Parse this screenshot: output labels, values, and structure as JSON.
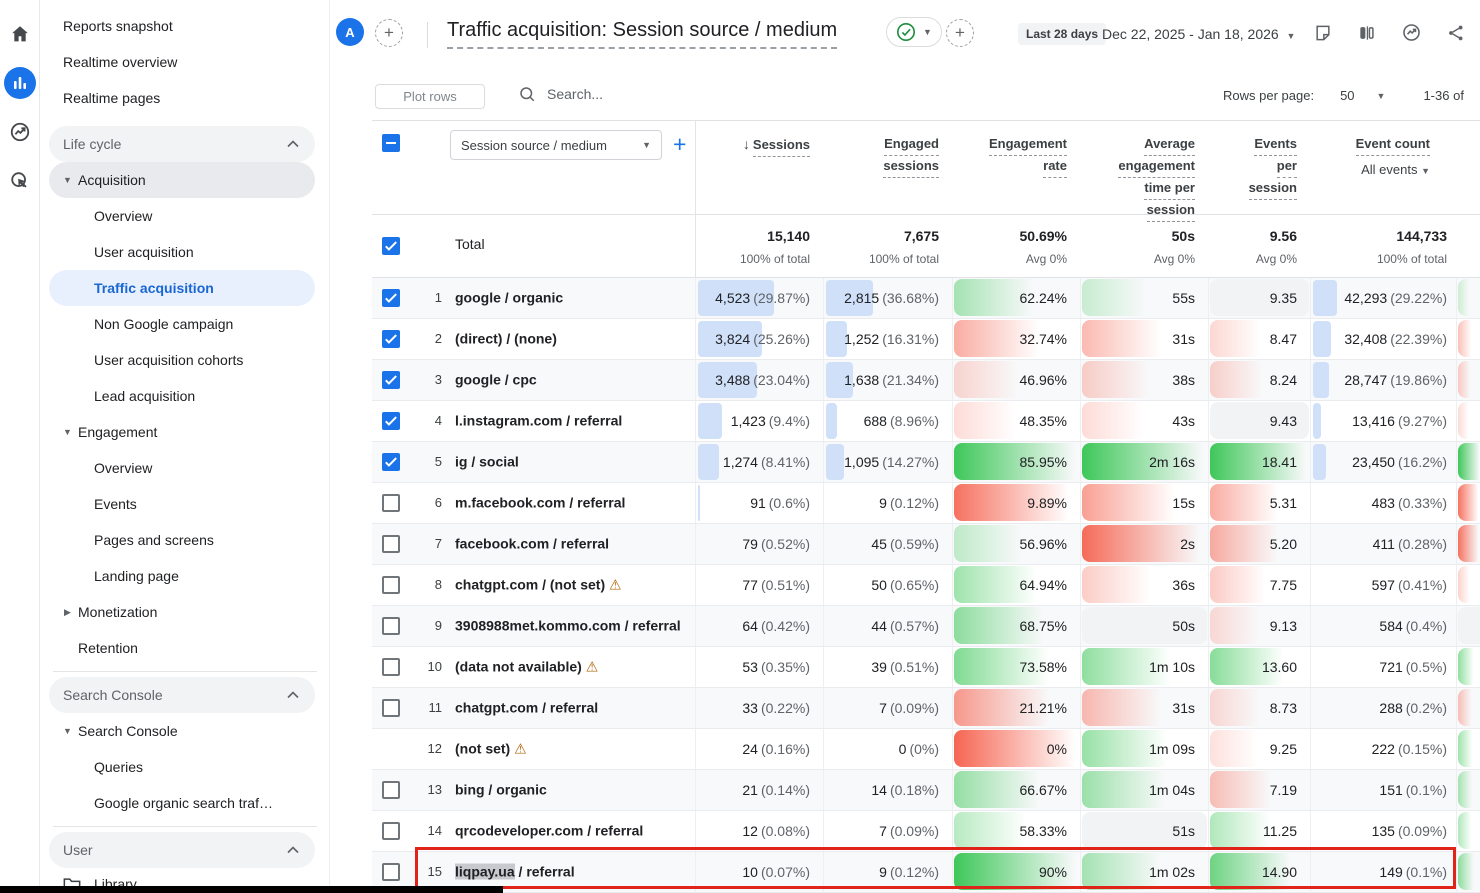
{
  "rail": {
    "items": [
      "home",
      "reports",
      "advertising",
      "explore"
    ]
  },
  "sidebar": {
    "items": [
      {
        "label": "Reports snapshot",
        "type": "top"
      },
      {
        "label": "Realtime overview",
        "type": "top"
      },
      {
        "label": "Realtime pages",
        "type": "top"
      },
      {
        "label": "Life cycle",
        "type": "section"
      },
      {
        "label": "Acquisition",
        "type": "parent",
        "expanded": true,
        "active": true
      },
      {
        "label": "Overview",
        "type": "child"
      },
      {
        "label": "User acquisition",
        "type": "child"
      },
      {
        "label": "Traffic acquisition",
        "type": "child",
        "selected": true
      },
      {
        "label": "Non Google campaign",
        "type": "child"
      },
      {
        "label": "User acquisition cohorts",
        "type": "child"
      },
      {
        "label": "Lead acquisition",
        "type": "child"
      },
      {
        "label": "Engagement",
        "type": "parent",
        "expanded": true
      },
      {
        "label": "Overview",
        "type": "child"
      },
      {
        "label": "Events",
        "type": "child"
      },
      {
        "label": "Pages and screens",
        "type": "child"
      },
      {
        "label": "Landing page",
        "type": "child"
      },
      {
        "label": "Monetization",
        "type": "parent",
        "expanded": false
      },
      {
        "label": "Retention",
        "type": "parent_plain"
      },
      {
        "type": "divider"
      },
      {
        "label": "Search Console",
        "type": "section"
      },
      {
        "label": "Search Console",
        "type": "parent",
        "expanded": true
      },
      {
        "label": "Queries",
        "type": "child"
      },
      {
        "label": "Google organic search traf…",
        "type": "child"
      },
      {
        "type": "divider"
      },
      {
        "label": "User",
        "type": "section"
      },
      {
        "label": "Library",
        "type": "library"
      }
    ]
  },
  "appbar": {
    "avatar_letter": "A",
    "title": "Traffic acquisition: Session source / medium",
    "date_preset": "Last 28 days",
    "date_range": "Dec 22, 2025 - Jan 18, 2026"
  },
  "toolbar": {
    "plot_rows_label": "Plot rows",
    "search_placeholder": "Search...",
    "rows_per_page_label": "Rows per page:",
    "rows_per_page_value": "50",
    "pagination": "1-36 of"
  },
  "table": {
    "dimension_selector": "Session source / medium",
    "columns": [
      {
        "lines": [
          "Sessions"
        ],
        "sorted": true
      },
      {
        "lines": [
          "Engaged",
          "sessions"
        ]
      },
      {
        "lines": [
          "Engagement",
          "rate"
        ]
      },
      {
        "lines": [
          "Average",
          "engagement",
          "time per",
          "session"
        ]
      },
      {
        "lines": [
          "Events",
          "per",
          "session"
        ]
      },
      {
        "lines": [
          "Event count"
        ],
        "sub": "All events"
      }
    ],
    "totals": {
      "label": "Total",
      "cells": [
        [
          "15,140",
          "100% of total"
        ],
        [
          "7,675",
          "100% of total"
        ],
        [
          "50.69%",
          "Avg 0%"
        ],
        [
          "50s",
          "Avg 0%"
        ],
        [
          "9.56",
          "Avg 0%"
        ],
        [
          "144,733",
          "100% of total"
        ]
      ]
    },
    "rows": [
      {
        "n": "1",
        "check": "on",
        "dim": "google / organic",
        "sessions": [
          "4,523",
          "(29.87%)"
        ],
        "engaged": [
          "2,815",
          "(36.68%)"
        ],
        "rate": "62.24%",
        "time": "55s",
        "eps": "9.35",
        "events": [
          "42,293",
          "(29.22%)"
        ],
        "bars": [
          1,
          1,
          1
        ],
        "heat": [
          0.35,
          0.12,
          0,
          0.1
        ]
      },
      {
        "n": "2",
        "check": "on",
        "dim": "(direct) / (none)",
        "sessions": [
          "3,824",
          "(25.26%)"
        ],
        "engaged": [
          "1,252",
          "(16.31%)"
        ],
        "rate": "32.74%",
        "time": "31s",
        "eps": "8.47",
        "events": [
          "32,408",
          "(22.39%)"
        ],
        "bars": [
          0.846,
          0.445,
          0.766
        ],
        "heat": [
          -0.45,
          -0.35,
          -0.12,
          -0.3
        ]
      },
      {
        "n": "3",
        "check": "on",
        "dim": "google / cpc",
        "sessions": [
          "3,488",
          "(23.04%)"
        ],
        "engaged": [
          "1,638",
          "(21.34%)"
        ],
        "rate": "46.96%",
        "time": "38s",
        "eps": "8.24",
        "events": [
          "28,747",
          "(19.86%)"
        ],
        "bars": [
          0.771,
          0.582,
          0.68
        ],
        "heat": [
          -0.12,
          -0.18,
          -0.15,
          -0.2
        ]
      },
      {
        "n": "4",
        "check": "on",
        "dim": "l.instagram.com / referral",
        "sessions": [
          "1,423",
          "(9.4%)"
        ],
        "engaged": [
          "688",
          "(8.96%)"
        ],
        "rate": "48.35%",
        "time": "43s",
        "eps": "9.43",
        "events": [
          "13,416",
          "(9.27%)"
        ],
        "bars": [
          0.315,
          0.244,
          0.317
        ],
        "heat": [
          -0.08,
          -0.08,
          0,
          -0.08
        ]
      },
      {
        "n": "5",
        "check": "on",
        "dim": "ig / social",
        "sessions": [
          "1,274",
          "(8.41%)"
        ],
        "engaged": [
          "1,095",
          "(14.27%)"
        ],
        "rate": "85.95%",
        "time": "2m 16s",
        "eps": "18.41",
        "events": [
          "23,450",
          "(16.2%)"
        ],
        "bars": [
          0.282,
          0.389,
          0.554
        ],
        "heat": [
          1,
          1,
          1,
          1
        ]
      },
      {
        "n": "6",
        "check": "off",
        "dim": "m.facebook.com / referral",
        "sessions": [
          "91",
          "(0.6%)"
        ],
        "engaged": [
          "9",
          "(0.12%)"
        ],
        "rate": "9.89%",
        "time": "15s",
        "eps": "5.31",
        "events": [
          "483",
          "(0.33%)"
        ],
        "bars": [
          0.02,
          0.003,
          0.011
        ],
        "heat": [
          -0.9,
          -0.55,
          -0.45,
          -0.9
        ]
      },
      {
        "n": "7",
        "check": "off",
        "dim": "facebook.com / referral",
        "sessions": [
          "79",
          "(0.52%)"
        ],
        "engaged": [
          "45",
          "(0.59%)"
        ],
        "rate": "56.96%",
        "time": "2s",
        "eps": "5.20",
        "events": [
          "411",
          "(0.28%)"
        ],
        "bars": [
          0.017,
          0.016,
          0.01
        ],
        "heat": [
          0.18,
          -0.95,
          -0.45,
          -0.9
        ]
      },
      {
        "n": "8",
        "check": "off",
        "dim": "chatgpt.com / (not set)",
        "warn": true,
        "sessions": [
          "77",
          "(0.51%)"
        ],
        "engaged": [
          "50",
          "(0.65%)"
        ],
        "rate": "64.94%",
        "time": "36s",
        "eps": "7.75",
        "events": [
          "597",
          "(0.41%)"
        ],
        "bars": [
          0.017,
          0.018,
          0.014
        ],
        "heat": [
          0.4,
          -0.2,
          -0.22,
          -0.15
        ]
      },
      {
        "n": "9",
        "check": "off",
        "dim": "3908988met.kommo.com / referral",
        "sessions": [
          "64",
          "(0.42%)"
        ],
        "engaged": [
          "44",
          "(0.57%)"
        ],
        "rate": "68.75%",
        "time": "50s",
        "eps": "9.13",
        "events": [
          "584",
          "(0.4%)"
        ],
        "bars": [
          0.014,
          0.016,
          0.014
        ],
        "heat": [
          0.5,
          0,
          -0.08,
          0
        ]
      },
      {
        "n": "10",
        "check": "off",
        "dim": "(data not available)",
        "warn": true,
        "sessions": [
          "53",
          "(0.35%)"
        ],
        "engaged": [
          "39",
          "(0.51%)"
        ],
        "rate": "73.58%",
        "time": "1m 10s",
        "eps": "13.60",
        "events": [
          "721",
          "(0.5%)"
        ],
        "bars": [
          0.012,
          0.014,
          0.017
        ],
        "heat": [
          0.6,
          0.5,
          0.55,
          0.5
        ]
      },
      {
        "n": "11",
        "check": "off",
        "dim": "chatgpt.com / referral",
        "sessions": [
          "33",
          "(0.22%)"
        ],
        "engaged": [
          "7",
          "(0.09%)"
        ],
        "rate": "21.21%",
        "time": "31s",
        "eps": "8.73",
        "events": [
          "288",
          "(0.2%)"
        ],
        "bars": [
          0.007,
          0.002,
          0.007
        ],
        "heat": [
          -0.6,
          -0.35,
          -0.1,
          -0.3
        ]
      },
      {
        "n": "12",
        "check": "none",
        "dim": "(not set)",
        "warn": true,
        "sessions": [
          "24",
          "(0.16%)"
        ],
        "engaged": [
          "0",
          "(0%)"
        ],
        "rate": "0%",
        "time": "1m 09s",
        "eps": "9.25",
        "events": [
          "222",
          "(0.15%)"
        ],
        "bars": [
          0.005,
          0,
          0.005
        ],
        "heat": [
          -1,
          0.45,
          -0.05,
          0.4
        ]
      },
      {
        "n": "13",
        "check": "off",
        "dim": "bing / organic",
        "sessions": [
          "21",
          "(0.14%)"
        ],
        "engaged": [
          "14",
          "(0.18%)"
        ],
        "rate": "66.67%",
        "time": "1m 04s",
        "eps": "7.19",
        "events": [
          "151",
          "(0.1%)"
        ],
        "bars": [
          0.005,
          0.005,
          0.004
        ],
        "heat": [
          0.45,
          0.4,
          -0.3,
          0.35
        ]
      },
      {
        "n": "14",
        "check": "off",
        "dim": "qrcodeveloper.com / referral",
        "sessions": [
          "12",
          "(0.08%)"
        ],
        "engaged": [
          "7",
          "(0.09%)"
        ],
        "rate": "58.33%",
        "time": "51s",
        "eps": "11.25",
        "events": [
          "135",
          "(0.09%)"
        ],
        "bars": [
          0.003,
          0.002,
          0.003
        ],
        "heat": [
          0.25,
          0,
          0.3,
          0.3
        ]
      },
      {
        "n": "15",
        "check": "off",
        "dim_hl": "liqpay.ua",
        "dim_rest": " / referral",
        "sessions": [
          "10",
          "(0.07%)"
        ],
        "engaged": [
          "9",
          "(0.12%)"
        ],
        "rate": "90%",
        "time": "1m 02s",
        "eps": "14.90",
        "events": [
          "149",
          "(0.1%)"
        ],
        "bars": [
          0.002,
          0.003,
          0.004
        ],
        "heat": [
          1,
          0.35,
          0.7,
          0.5
        ]
      }
    ]
  },
  "colors": {
    "accent_blue": "#1a73e8",
    "bar_blue": "#cfe0f8",
    "heat_green": "62,199,89",
    "heat_red": "245,101,82",
    "selected_nav_bg": "#e8f0fe",
    "check_green": "#1e8e3e"
  },
  "annotations": {
    "red_box_color": "#e02419",
    "black_bar_color": "#000000",
    "selection_highlight_color": "#c6c9cd"
  }
}
